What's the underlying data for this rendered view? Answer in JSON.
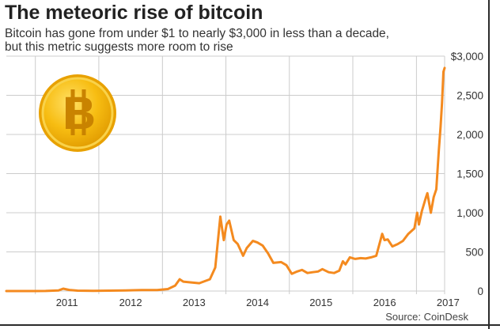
{
  "header": {
    "title": "The meteoric rise of bitcoin",
    "subtitle_line1": "Bitcoin has gone from under $1 to nearly $3,000 in less than a decade,",
    "subtitle_line2": "but this metric suggests more room to rise"
  },
  "source": "Source: CoinDesk",
  "logo": {
    "icon": "bitcoin-coin-icon",
    "glyph": "B",
    "color": "#f5b400"
  },
  "colors": {
    "line": "#f48a1f",
    "grid": "#cccccc",
    "axis": "#333333"
  },
  "chart_data": {
    "type": "line",
    "title": "The meteoric rise of bitcoin",
    "subtitle": "Bitcoin has gone from under $1 to nearly $3,000 in less than a decade, but this metric suggests more room to rise",
    "xlabel": "",
    "ylabel": "",
    "x_tick_labels": [
      "2011",
      "2012",
      "2013",
      "2014",
      "2015",
      "2016",
      "2017"
    ],
    "y_tick_labels": [
      "0",
      "500",
      "1,000",
      "1,500",
      "2,000",
      "2,500",
      "$3,000"
    ],
    "y_ticks": [
      0,
      500,
      1000,
      1500,
      2000,
      2500,
      3000
    ],
    "ylim": [
      0,
      3000
    ],
    "xlim": [
      "2010-07-18",
      "2017-06-12"
    ],
    "grid": true,
    "series": [
      {
        "x": [
          "2010-07-18",
          "2010-10-01",
          "2011-01-01",
          "2011-03-01",
          "2011-05-15",
          "2011-06-10",
          "2011-07-15",
          "2011-09-01",
          "2011-12-01",
          "2012-03-01",
          "2012-06-01",
          "2012-09-01",
          "2012-12-01",
          "2013-02-01",
          "2013-03-15",
          "2013-04-10",
          "2013-05-01",
          "2013-06-15",
          "2013-08-01",
          "2013-10-01",
          "2013-11-01",
          "2013-11-30",
          "2013-12-20",
          "2014-01-05",
          "2014-01-20",
          "2014-02-15",
          "2014-03-10",
          "2014-04-10",
          "2014-05-01",
          "2014-06-05",
          "2014-07-01",
          "2014-08-01",
          "2014-09-01",
          "2014-10-01",
          "2014-11-15",
          "2014-12-15",
          "2015-01-15",
          "2015-02-15",
          "2015-03-15",
          "2015-04-15",
          "2015-05-15",
          "2015-06-15",
          "2015-07-10",
          "2015-08-15",
          "2015-09-15",
          "2015-10-15",
          "2015-11-05",
          "2015-11-20",
          "2015-12-15",
          "2016-01-15",
          "2016-02-15",
          "2016-03-15",
          "2016-04-15",
          "2016-05-15",
          "2016-06-18",
          "2016-07-01",
          "2016-07-20",
          "2016-08-15",
          "2016-09-15",
          "2016-10-15",
          "2016-11-15",
          "2016-12-20",
          "2017-01-05",
          "2017-01-15",
          "2017-02-01",
          "2017-02-25",
          "2017-03-05",
          "2017-03-25",
          "2017-04-10",
          "2017-04-25",
          "2017-05-10",
          "2017-05-20",
          "2017-05-28",
          "2017-06-05",
          "2017-06-12"
        ],
        "y": [
          0.07,
          0.1,
          0.3,
          0.9,
          8,
          30,
          14,
          5,
          3,
          5,
          7,
          12,
          13,
          25,
          70,
          150,
          120,
          110,
          100,
          150,
          300,
          950,
          650,
          850,
          900,
          650,
          600,
          450,
          550,
          640,
          620,
          580,
          480,
          360,
          370,
          330,
          220,
          250,
          270,
          230,
          240,
          250,
          280,
          240,
          230,
          260,
          380,
          340,
          430,
          410,
          420,
          415,
          430,
          450,
          730,
          650,
          660,
          570,
          600,
          640,
          730,
          800,
          1000,
          850,
          1020,
          1200,
          1250,
          1000,
          1200,
          1300,
          1800,
          2100,
          2400,
          2800,
          2850
        ]
      }
    ]
  }
}
